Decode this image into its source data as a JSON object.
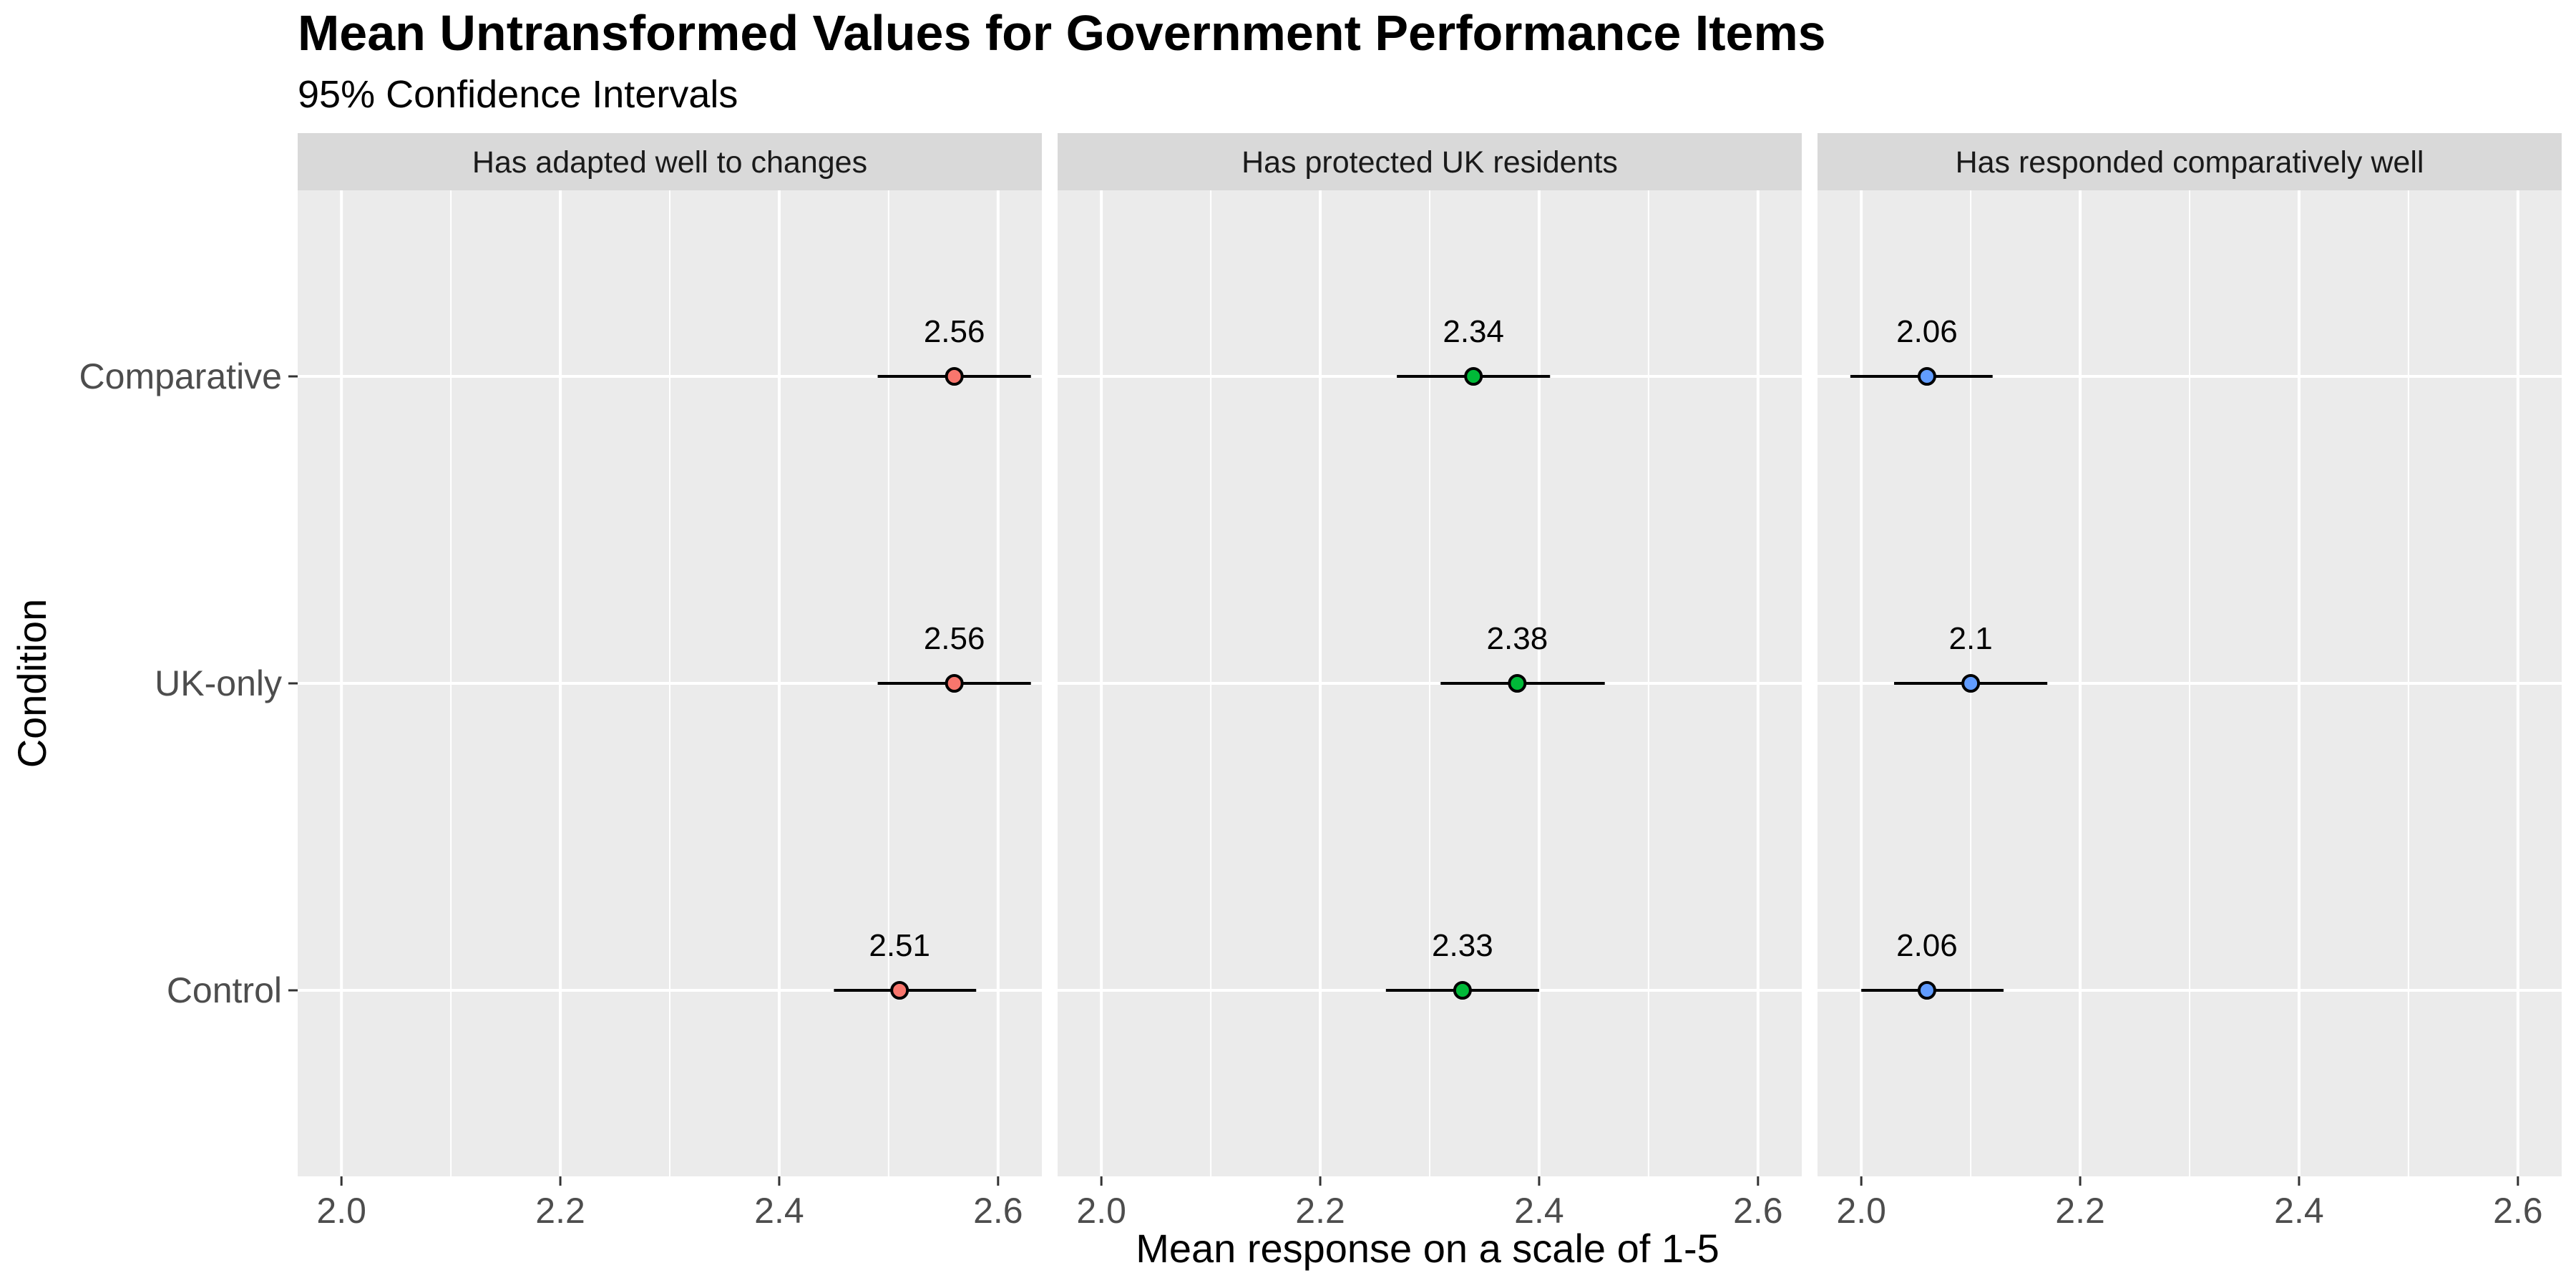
{
  "title": "Mean Untransformed Values for Government Performance Items",
  "subtitle": "95% Confidence Intervals",
  "chart_data": {
    "type": "scatter",
    "xlabel": "Mean response on a scale of 1-5",
    "ylabel": "Condition",
    "xlim": [
      1.96,
      2.64
    ],
    "xticks": [
      2.0,
      2.2,
      2.4,
      2.6
    ],
    "xtick_labels": [
      "2.0",
      "2.2",
      "2.4",
      "2.6"
    ],
    "categories": [
      "Comparative",
      "UK-only",
      "Control"
    ],
    "grid": true,
    "legend": "none",
    "panels": [
      {
        "name": "Has adapted well to changes",
        "color": "#F8766D",
        "points": [
          {
            "condition": "Comparative",
            "mean": 2.56,
            "lower": 2.49,
            "upper": 2.63,
            "label": "2.56"
          },
          {
            "condition": "UK-only",
            "mean": 2.56,
            "lower": 2.49,
            "upper": 2.63,
            "label": "2.56"
          },
          {
            "condition": "Control",
            "mean": 2.51,
            "lower": 2.45,
            "upper": 2.58,
            "label": "2.51"
          }
        ]
      },
      {
        "name": "Has protected UK residents",
        "color": "#00BA38",
        "points": [
          {
            "condition": "Comparative",
            "mean": 2.34,
            "lower": 2.27,
            "upper": 2.41,
            "label": "2.34"
          },
          {
            "condition": "UK-only",
            "mean": 2.38,
            "lower": 2.31,
            "upper": 2.46,
            "label": "2.38"
          },
          {
            "condition": "Control",
            "mean": 2.33,
            "lower": 2.26,
            "upper": 2.4,
            "label": "2.33"
          }
        ]
      },
      {
        "name": "Has responded comparatively well",
        "color": "#619CFF",
        "points": [
          {
            "condition": "Comparative",
            "mean": 2.06,
            "lower": 1.99,
            "upper": 2.12,
            "label": "2.06"
          },
          {
            "condition": "UK-only",
            "mean": 2.1,
            "lower": 2.03,
            "upper": 2.17,
            "label": "2.1"
          },
          {
            "condition": "Control",
            "mean": 2.06,
            "lower": 2.0,
            "upper": 2.13,
            "label": "2.06"
          }
        ]
      }
    ]
  }
}
